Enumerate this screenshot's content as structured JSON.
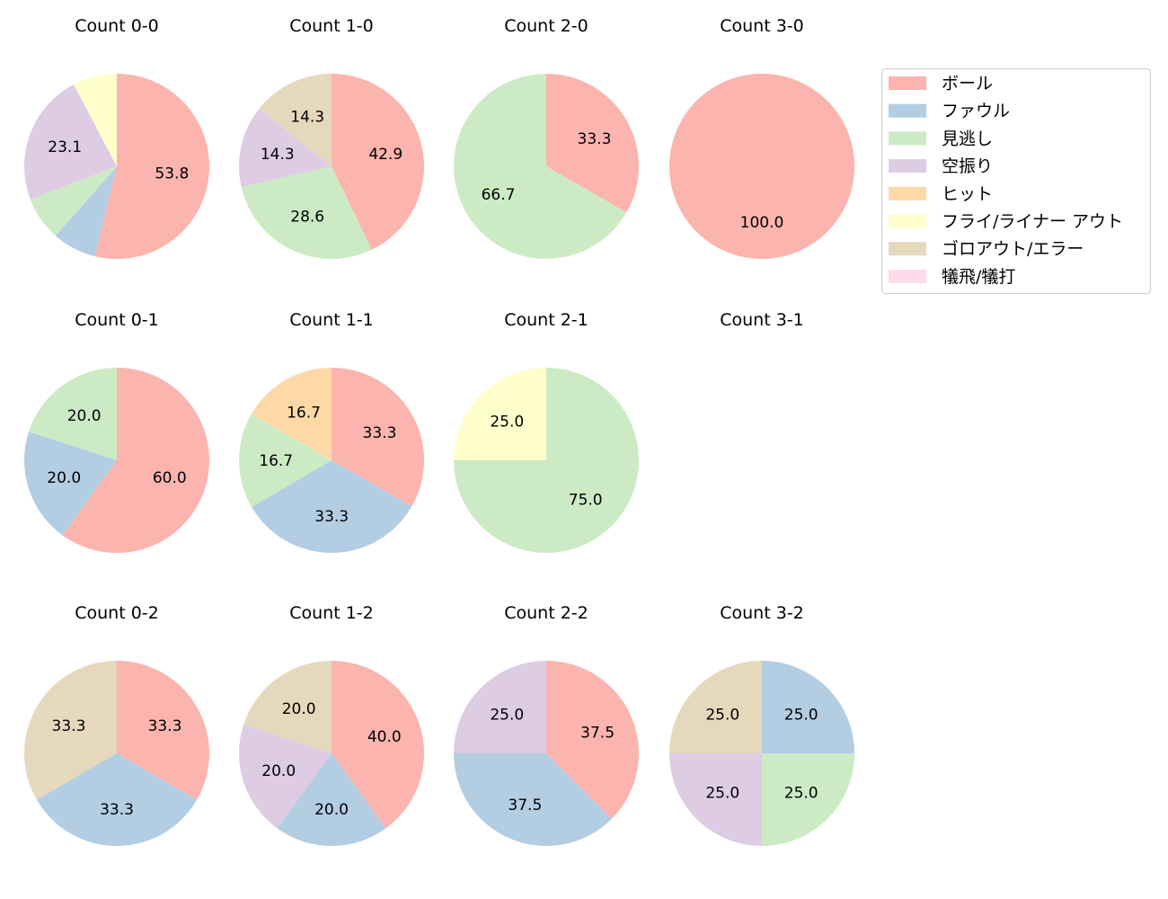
{
  "chart_data": {
    "type": "pie",
    "categories": [
      "ボール",
      "ファウル",
      "見逃し",
      "空振り",
      "ヒット",
      "フライ/ライナー アウト",
      "ゴロアウト/エラー",
      "犠飛/犠打"
    ],
    "colors": [
      "#fbb4ae",
      "#b3cde3",
      "#ccebc5",
      "#decbe4",
      "#fed9a6",
      "#ffffcc",
      "#e5d8bd",
      "#fddaec"
    ],
    "legend_position": "top-right",
    "charts": [
      {
        "title": "Count 0-0",
        "values": [
          53.8,
          7.7,
          7.7,
          23.1,
          0,
          7.7,
          0,
          0
        ],
        "labels": [
          "53.8",
          "",
          "",
          "23.1",
          "",
          "",
          "",
          ""
        ]
      },
      {
        "title": "Count 1-0",
        "values": [
          42.9,
          0,
          28.6,
          14.3,
          0,
          0,
          14.3,
          0
        ],
        "labels": [
          "42.9",
          "",
          "28.6",
          "14.3",
          "",
          "",
          "14.3",
          ""
        ]
      },
      {
        "title": "Count 2-0",
        "values": [
          33.3,
          0,
          66.7,
          0,
          0,
          0,
          0,
          0
        ],
        "labels": [
          "33.3",
          "",
          "66.7",
          "",
          "",
          "",
          "",
          ""
        ]
      },
      {
        "title": "Count 3-0",
        "values": [
          100,
          0,
          0,
          0,
          0,
          0,
          0,
          0
        ],
        "labels": [
          "100.0",
          "",
          "",
          "",
          "",
          "",
          "",
          ""
        ]
      },
      {
        "title": "Count 0-1",
        "values": [
          60,
          20,
          20,
          0,
          0,
          0,
          0,
          0
        ],
        "labels": [
          "60.0",
          "20.0",
          "20.0",
          "",
          "",
          "",
          "",
          ""
        ]
      },
      {
        "title": "Count 1-1",
        "values": [
          33.3,
          33.3,
          16.7,
          0,
          16.7,
          0,
          0,
          0
        ],
        "labels": [
          "33.3",
          "33.3",
          "16.7",
          "",
          "16.7",
          "",
          "",
          ""
        ]
      },
      {
        "title": "Count 2-1",
        "values": [
          0,
          0,
          75,
          0,
          0,
          25,
          0,
          0
        ],
        "labels": [
          "",
          "",
          "75.0",
          "",
          "",
          "25.0",
          "",
          ""
        ]
      },
      {
        "title": "Count 3-1",
        "values": [
          0,
          0,
          0,
          0,
          0,
          0,
          0,
          0
        ],
        "labels": [
          "",
          "",
          "",
          "",
          "",
          "",
          "",
          ""
        ]
      },
      {
        "title": "Count 0-2",
        "values": [
          33.3,
          33.3,
          0,
          0,
          0,
          0,
          33.3,
          0
        ],
        "labels": [
          "33.3",
          "33.3",
          "",
          "",
          "",
          "",
          "33.3",
          ""
        ]
      },
      {
        "title": "Count 1-2",
        "values": [
          40,
          20,
          0,
          20,
          0,
          0,
          20,
          0
        ],
        "labels": [
          "40.0",
          "20.0",
          "",
          "20.0",
          "",
          "",
          "20.0",
          ""
        ]
      },
      {
        "title": "Count 2-2",
        "values": [
          37.5,
          37.5,
          0,
          25,
          0,
          0,
          0,
          0
        ],
        "labels": [
          "37.5",
          "37.5",
          "",
          "25.0",
          "",
          "",
          "",
          ""
        ]
      },
      {
        "title": "Count 3-2",
        "values": [
          0,
          25,
          25,
          25,
          0,
          0,
          25,
          0
        ],
        "labels": [
          "",
          "25.0",
          "25.0",
          "25.0",
          "",
          "",
          "25.0",
          ""
        ]
      }
    ]
  }
}
